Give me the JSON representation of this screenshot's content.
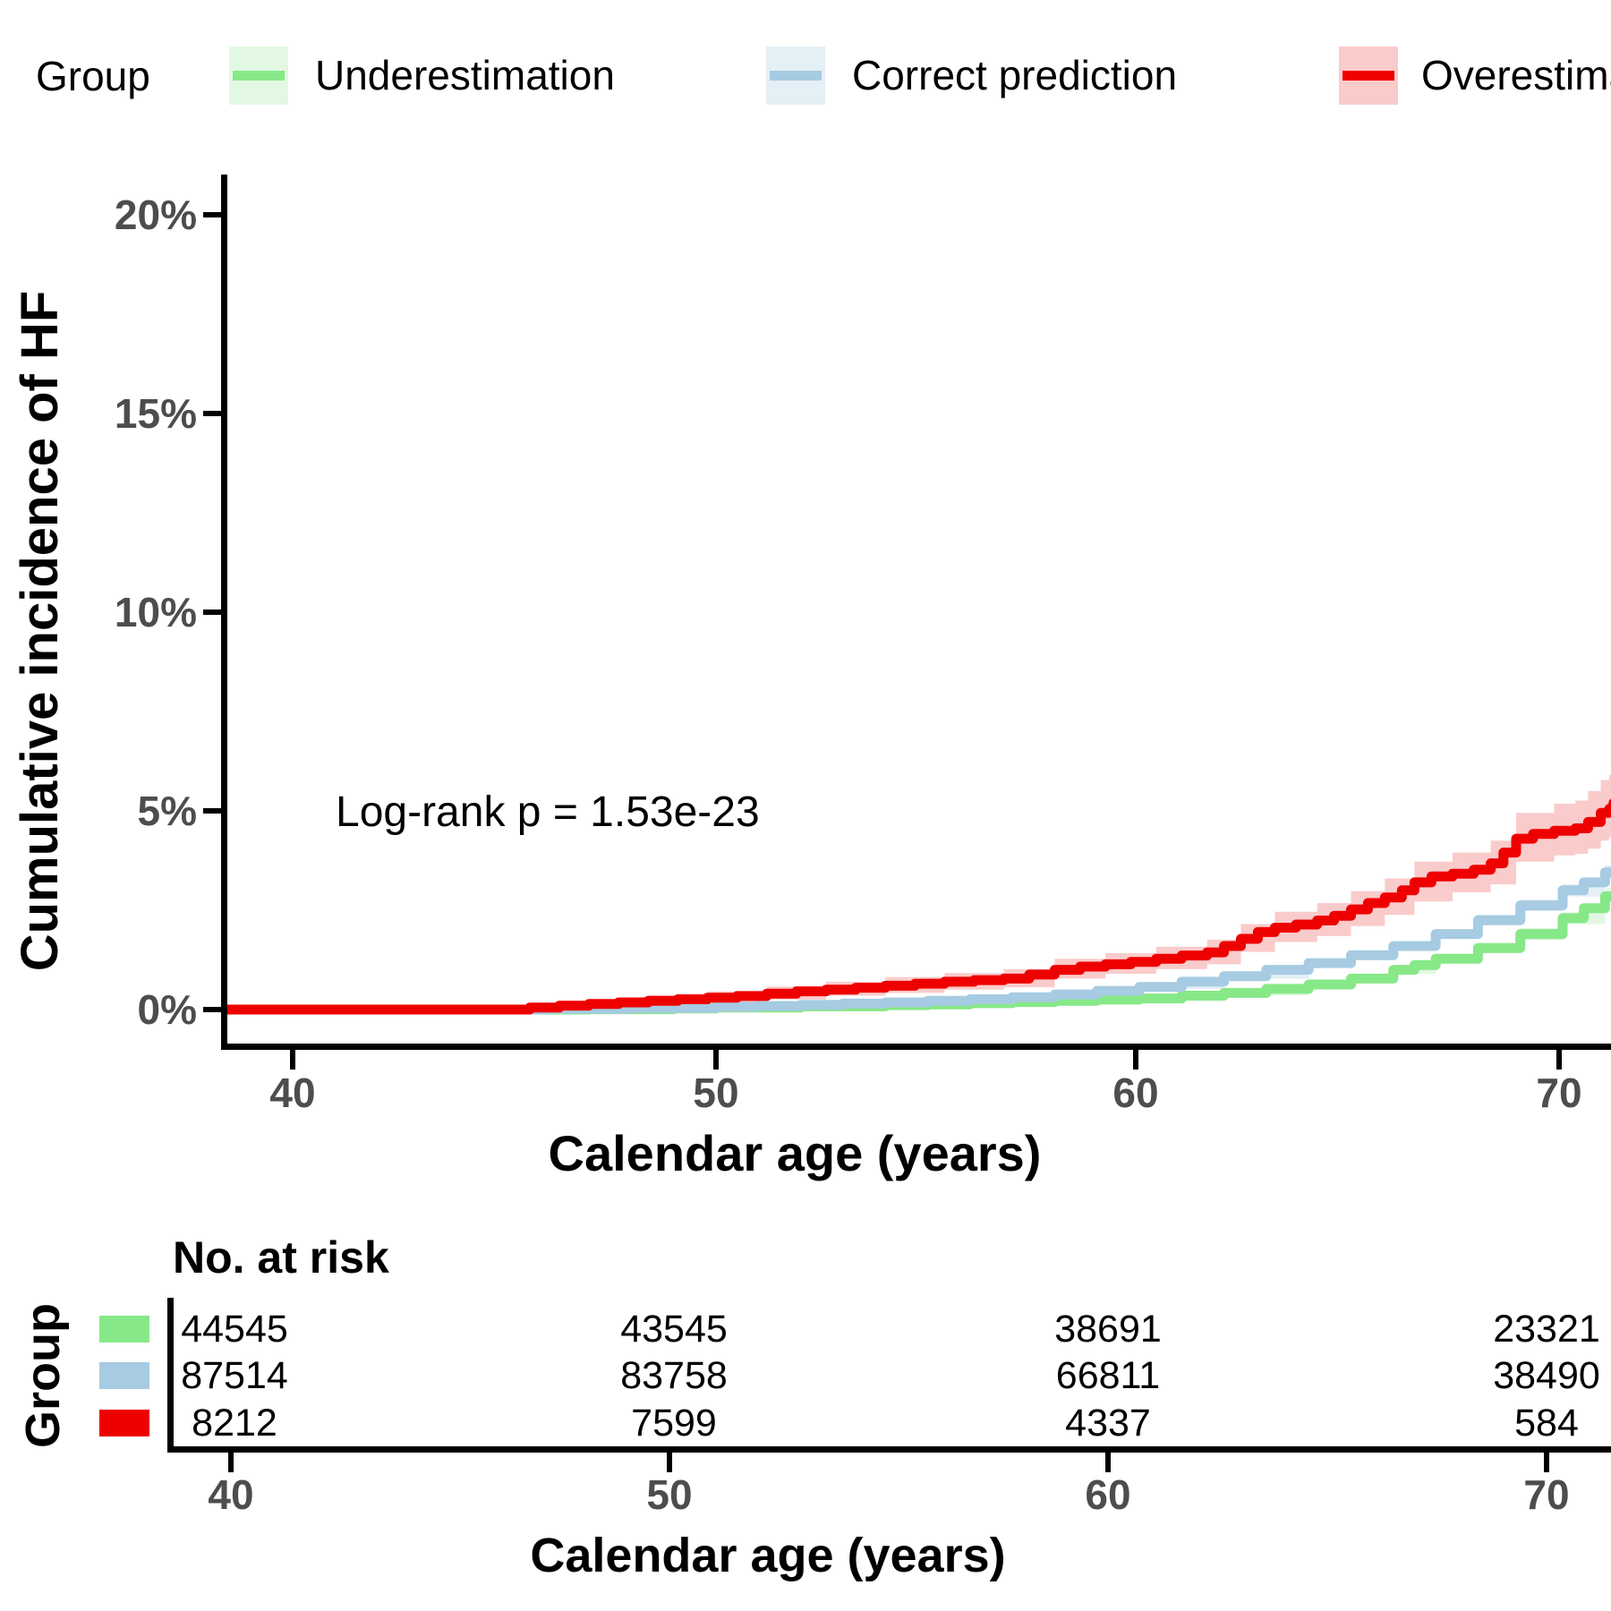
{
  "legend": {
    "title": "Group",
    "items": [
      {
        "label": "Underestimation",
        "line": "#87E887",
        "fill": "#E3F8E3"
      },
      {
        "label": "Correct prediction",
        "line": "#A6CBE2",
        "fill": "#E5EFF6"
      },
      {
        "label": "Overestimation",
        "line": "#EF0000",
        "fill": "#FACBCB"
      }
    ]
  },
  "chart_data": {
    "type": "line",
    "step": true,
    "title": "",
    "ylabel": "Cumulative incidence of HF",
    "xlabel": "Calendar age (years)",
    "annotation": "Log-rank p = 1.53e-23",
    "x_ticks": [
      40,
      50,
      60,
      70
    ],
    "x_tick_labels": [
      "40",
      "50",
      "60",
      "70"
    ],
    "y_ticks": [
      0,
      5,
      10,
      15,
      20
    ],
    "y_tick_labels": [
      "0%",
      "5%",
      "10%",
      "15%",
      "20%"
    ],
    "xlim": [
      38.3,
      71.3
    ],
    "ylim": [
      0,
      21
    ],
    "grid": false,
    "legend_position": "top",
    "series": [
      {
        "name": "Underestimation",
        "color": "#87E887",
        "fill": "#E3F8E3",
        "points": [
          [
            38.3,
            0
          ],
          [
            47,
            0.01
          ],
          [
            49,
            0.03
          ],
          [
            50,
            0.05
          ],
          [
            52,
            0.08
          ],
          [
            54,
            0.11
          ],
          [
            55,
            0.13
          ],
          [
            56,
            0.16
          ],
          [
            57,
            0.19
          ],
          [
            58,
            0.22
          ],
          [
            59,
            0.25
          ],
          [
            60,
            0.28
          ],
          [
            61,
            0.35
          ],
          [
            62,
            0.42
          ],
          [
            63,
            0.52
          ],
          [
            64,
            0.63
          ],
          [
            65,
            0.78
          ],
          [
            66,
            1.0
          ],
          [
            66.5,
            1.12
          ],
          [
            67,
            1.28
          ],
          [
            68,
            1.55
          ],
          [
            69,
            1.9
          ],
          [
            70,
            2.3
          ],
          [
            70.5,
            2.55
          ],
          [
            71,
            2.85
          ],
          [
            71.3,
            3.05
          ]
        ],
        "ci": [
          [
            49,
            0,
            0.06
          ],
          [
            52,
            0.05,
            0.12
          ],
          [
            55,
            0.1,
            0.18
          ],
          [
            58,
            0.17,
            0.28
          ],
          [
            60,
            0.23,
            0.34
          ],
          [
            62,
            0.35,
            0.5
          ],
          [
            64,
            0.55,
            0.72
          ],
          [
            65,
            0.7,
            0.88
          ],
          [
            66,
            0.9,
            1.1
          ],
          [
            67,
            1.17,
            1.4
          ],
          [
            68,
            1.42,
            1.68
          ],
          [
            69,
            1.75,
            2.05
          ],
          [
            70,
            2.15,
            2.45
          ],
          [
            71,
            2.68,
            3.05
          ],
          [
            71.3,
            2.85,
            3.28
          ]
        ]
      },
      {
        "name": "Correct prediction",
        "color": "#A6CBE2",
        "fill": "#E5EFF6",
        "points": [
          [
            38.3,
            0
          ],
          [
            46,
            0.02
          ],
          [
            48,
            0.04
          ],
          [
            50,
            0.07
          ],
          [
            51,
            0.09
          ],
          [
            52,
            0.12
          ],
          [
            53,
            0.15
          ],
          [
            54,
            0.18
          ],
          [
            55,
            0.22
          ],
          [
            56,
            0.26
          ],
          [
            57,
            0.31
          ],
          [
            58,
            0.38
          ],
          [
            59,
            0.47
          ],
          [
            60,
            0.57
          ],
          [
            61,
            0.7
          ],
          [
            62,
            0.84
          ],
          [
            63,
            1.0
          ],
          [
            64,
            1.17
          ],
          [
            65,
            1.37
          ],
          [
            66,
            1.6
          ],
          [
            67,
            1.9
          ],
          [
            68,
            2.25
          ],
          [
            69,
            2.62
          ],
          [
            70,
            3.0
          ],
          [
            70.5,
            3.2
          ],
          [
            71,
            3.45
          ],
          [
            71.3,
            3.65
          ]
        ],
        "ci": [
          [
            48,
            0.02,
            0.07
          ],
          [
            50,
            0.04,
            0.1
          ],
          [
            52,
            0.09,
            0.16
          ],
          [
            55,
            0.18,
            0.27
          ],
          [
            58,
            0.33,
            0.44
          ],
          [
            60,
            0.51,
            0.64
          ],
          [
            62,
            0.77,
            0.92
          ],
          [
            64,
            1.08,
            1.27
          ],
          [
            65,
            1.28,
            1.47
          ],
          [
            66,
            1.5,
            1.71
          ],
          [
            67,
            1.79,
            2.02
          ],
          [
            68,
            2.12,
            2.38
          ],
          [
            69,
            2.48,
            2.77
          ],
          [
            70,
            2.85,
            3.16
          ],
          [
            71,
            3.28,
            3.63
          ],
          [
            71.3,
            3.45,
            3.88
          ]
        ]
      },
      {
        "name": "Overestimation",
        "color": "#EF0000",
        "fill": "#FACBCB",
        "points": [
          [
            38.3,
            0
          ],
          [
            45.6,
            0.05
          ],
          [
            46.3,
            0.1
          ],
          [
            47,
            0.14
          ],
          [
            47.7,
            0.18
          ],
          [
            48.4,
            0.22
          ],
          [
            49.1,
            0.26
          ],
          [
            49.8,
            0.3
          ],
          [
            50.5,
            0.34
          ],
          [
            51.2,
            0.4
          ],
          [
            51.9,
            0.46
          ],
          [
            52.6,
            0.5
          ],
          [
            53.3,
            0.55
          ],
          [
            54,
            0.6
          ],
          [
            54.7,
            0.65
          ],
          [
            55.4,
            0.7
          ],
          [
            56.1,
            0.74
          ],
          [
            56.8,
            0.78
          ],
          [
            57.4,
            0.88
          ],
          [
            58,
            1.0
          ],
          [
            58.6,
            1.08
          ],
          [
            59.2,
            1.14
          ],
          [
            59.8,
            1.2
          ],
          [
            60.4,
            1.28
          ],
          [
            61,
            1.36
          ],
          [
            61.6,
            1.44
          ],
          [
            62,
            1.6
          ],
          [
            62.4,
            1.78
          ],
          [
            62.8,
            1.95
          ],
          [
            63.2,
            2.06
          ],
          [
            63.7,
            2.14
          ],
          [
            64.2,
            2.24
          ],
          [
            64.6,
            2.36
          ],
          [
            65,
            2.52
          ],
          [
            65.4,
            2.68
          ],
          [
            65.8,
            2.82
          ],
          [
            66.2,
            3.0
          ],
          [
            66.5,
            3.2
          ],
          [
            66.9,
            3.35
          ],
          [
            67.4,
            3.42
          ],
          [
            67.9,
            3.52
          ],
          [
            68.3,
            3.68
          ],
          [
            68.6,
            3.95
          ],
          [
            68.9,
            4.3
          ],
          [
            69.3,
            4.42
          ],
          [
            69.8,
            4.5
          ],
          [
            70.3,
            4.56
          ],
          [
            70.6,
            4.72
          ],
          [
            70.9,
            4.95
          ],
          [
            71.1,
            5.05
          ],
          [
            71.2,
            5.2
          ]
        ],
        "ci": [
          [
            45.6,
            0,
            0.12
          ],
          [
            47,
            0.05,
            0.26
          ],
          [
            48.4,
            0.12,
            0.36
          ],
          [
            49.8,
            0.18,
            0.46
          ],
          [
            51.2,
            0.25,
            0.58
          ],
          [
            52.6,
            0.35,
            0.7
          ],
          [
            54,
            0.42,
            0.82
          ],
          [
            55.4,
            0.5,
            0.92
          ],
          [
            56.8,
            0.56,
            1.02
          ],
          [
            58,
            0.78,
            1.28
          ],
          [
            59.2,
            0.9,
            1.42
          ],
          [
            60.4,
            1.02,
            1.58
          ],
          [
            61.6,
            1.14,
            1.76
          ],
          [
            62.4,
            1.45,
            2.15
          ],
          [
            63.2,
            1.7,
            2.46
          ],
          [
            64.2,
            1.85,
            2.68
          ],
          [
            65,
            2.1,
            2.98
          ],
          [
            65.8,
            2.38,
            3.3
          ],
          [
            66.5,
            2.72,
            3.72
          ],
          [
            67.4,
            2.95,
            3.95
          ],
          [
            68.3,
            3.15,
            4.25
          ],
          [
            68.9,
            3.72,
            4.95
          ],
          [
            69.8,
            3.88,
            5.18
          ],
          [
            70.3,
            3.92,
            5.26
          ],
          [
            70.6,
            4.05,
            5.5
          ],
          [
            70.9,
            4.25,
            5.78
          ],
          [
            71.1,
            4.35,
            5.9
          ],
          [
            71.2,
            3.9,
            6.6
          ]
        ]
      }
    ]
  },
  "risk_table": {
    "title": "No. at risk",
    "group_label": "Group",
    "xlabel": "Calendar age (years)",
    "x_tick_labels": [
      "40",
      "50",
      "60",
      "70"
    ],
    "rows": [
      {
        "name": "Underestimation",
        "color": "#87E887",
        "counts": [
          "44545",
          "43545",
          "38691",
          "23321"
        ]
      },
      {
        "name": "Correct prediction",
        "color": "#A6CBE2",
        "counts": [
          "87514",
          "83758",
          "66811",
          "38490"
        ]
      },
      {
        "name": "Overestimation",
        "color": "#EF0000",
        "counts": [
          "8212",
          "7599",
          "4337",
          "584"
        ]
      }
    ]
  }
}
